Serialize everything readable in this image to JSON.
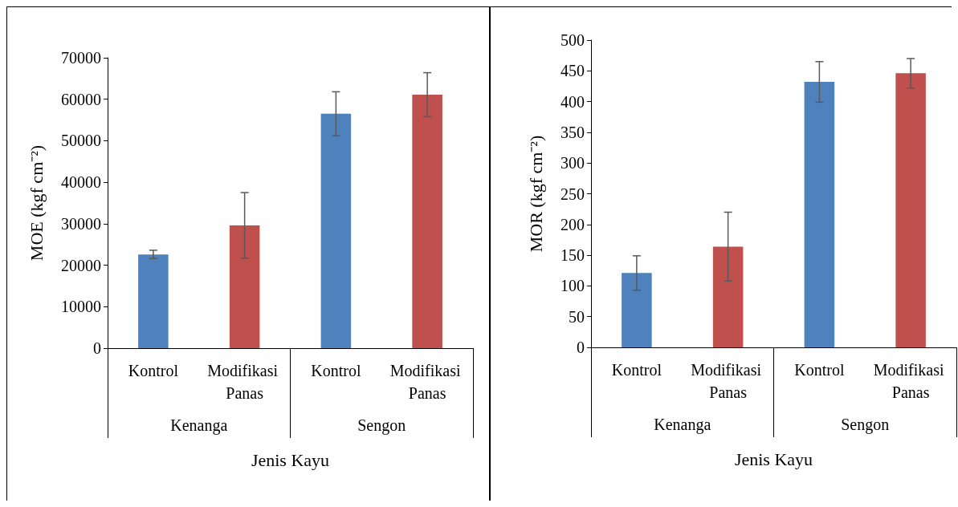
{
  "chart_data": [
    {
      "type": "bar",
      "categories": [
        "Kontrol",
        "Modifikasi Panas",
        "Kontrol",
        "Modifikasi Panas"
      ],
      "values": [
        22600,
        29600,
        56500,
        61100
      ],
      "errors": [
        1000,
        7900,
        5300,
        5300
      ],
      "colors": [
        "#4f81bd",
        "#c0504d",
        "#4f81bd",
        "#c0504d"
      ],
      "xlabel": "Jenis Kayu",
      "ylabel": "MOE (kgf cm⁻²)",
      "ylim": [
        0,
        70000
      ],
      "yticks": [
        0,
        10000,
        20000,
        30000,
        40000,
        50000,
        60000,
        70000
      ],
      "annotations": [
        "Kenanga",
        "Sengon"
      ]
    },
    {
      "type": "bar",
      "categories": [
        "Kontrol",
        "Modifikasi Panas",
        "Kontrol",
        "Modifikasi Panas"
      ],
      "values": [
        121,
        164,
        432,
        446
      ],
      "errors": [
        28,
        56,
        33,
        24
      ],
      "colors": [
        "#4f81bd",
        "#c0504d",
        "#4f81bd",
        "#c0504d"
      ],
      "xlabel": "Jenis Kayu",
      "ylabel": "MOR (kgf cm⁻²)",
      "ylim": [
        0,
        500
      ],
      "yticks": [
        0,
        50,
        100,
        150,
        200,
        250,
        300,
        350,
        400,
        450,
        500
      ],
      "annotations": [
        "Kenanga",
        "Sengon"
      ]
    }
  ]
}
